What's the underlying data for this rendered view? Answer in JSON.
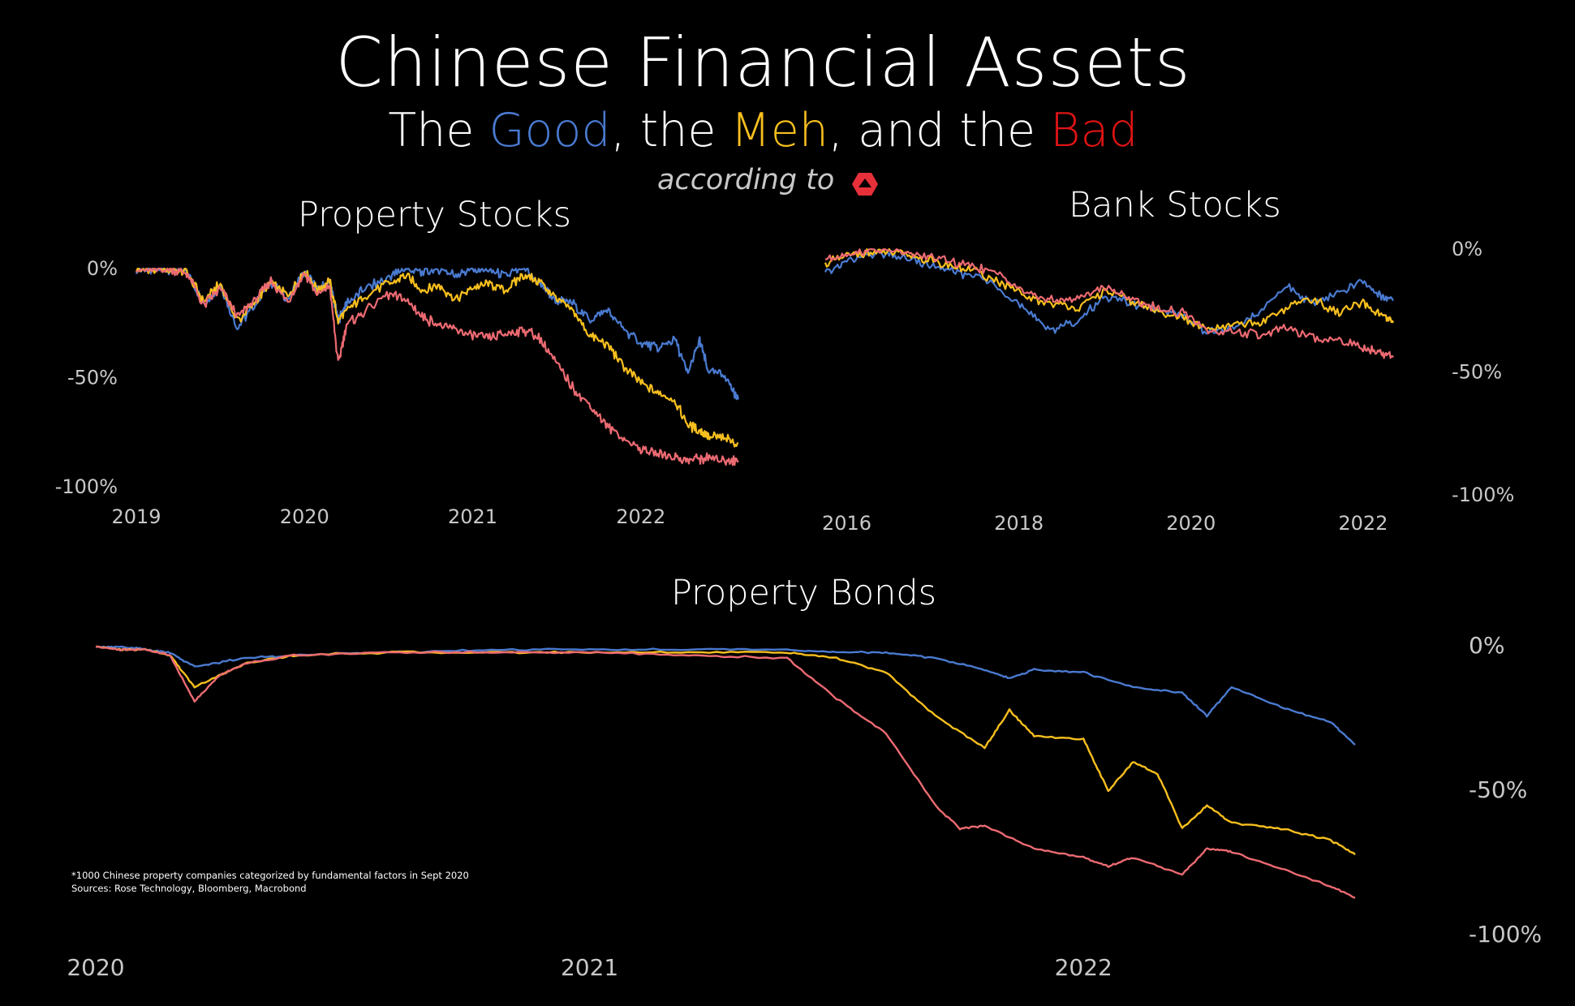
{
  "header": {
    "title": "Chinese Financial Assets",
    "subtitle_parts": [
      {
        "text": "The ",
        "color": "#ffffff"
      },
      {
        "text": "Good",
        "color": "#4a7ad0"
      },
      {
        "text": ", the ",
        "color": "#ffffff"
      },
      {
        "text": "Meh",
        "color": "#f7bf1e"
      },
      {
        "text": ", and the ",
        "color": "#ffffff"
      },
      {
        "text": "Bad",
        "color": "#e01414"
      }
    ],
    "according_to": "according to",
    "logo_icon": "red-hexagon-logo-icon"
  },
  "footnote": {
    "line1": "*1000 Chinese property companies categorized by fundamental factors in Sept 2020",
    "line2": "Sources: Rose Technology, Bloomberg, Macrobond"
  },
  "colors": {
    "good": "#4a7ad0",
    "meh": "#f7bf1e",
    "bad": "#ec6a72",
    "axis_text": "#c8c8c8",
    "background": "#000000"
  },
  "chart_data": [
    {
      "id": "property-stocks",
      "type": "line",
      "title": "Property Stocks",
      "xlabel": "",
      "ylabel": "",
      "x_ticks": [
        "2019",
        "2020",
        "2021",
        "2022"
      ],
      "x_tick_values": [
        2019,
        2020,
        2021,
        2022
      ],
      "xlim": [
        2019,
        2022.58
      ],
      "y_ticks": [
        "0%",
        "-50%",
        "-100%"
      ],
      "y_tick_values": [
        0,
        -50,
        -100
      ],
      "ylim": [
        -100,
        0
      ],
      "y_axis_side": "left",
      "grid": false,
      "series": [
        {
          "key": "good",
          "x": [
            2019.0,
            2019.1,
            2019.2,
            2019.3,
            2019.4,
            2019.5,
            2019.6,
            2019.7,
            2019.8,
            2019.9,
            2020.0,
            2020.08,
            2020.15,
            2020.2,
            2020.25,
            2020.35,
            2020.5,
            2020.6,
            2020.7,
            2020.8,
            2020.9,
            2021.0,
            2021.1,
            2021.2,
            2021.3,
            2021.4,
            2021.5,
            2021.6,
            2021.7,
            2021.8,
            2021.9,
            2022.0,
            2022.1,
            2022.2,
            2022.28,
            2022.35,
            2022.4,
            2022.5,
            2022.58
          ],
          "y": [
            0,
            -1,
            0,
            -2,
            -16,
            -8,
            -27,
            -17,
            -6,
            -14,
            -1,
            -10,
            -6,
            -24,
            -16,
            -10,
            -4,
            0,
            -2,
            0,
            -3,
            0,
            -1,
            -3,
            0,
            -7,
            -15,
            -16,
            -24,
            -19,
            -28,
            -34,
            -37,
            -32,
            -48,
            -33,
            -47,
            -49,
            -60
          ]
        },
        {
          "key": "meh",
          "x": [
            2019.0,
            2019.1,
            2019.2,
            2019.3,
            2019.4,
            2019.5,
            2019.6,
            2019.7,
            2019.8,
            2019.9,
            2020.0,
            2020.08,
            2020.15,
            2020.2,
            2020.25,
            2020.35,
            2020.5,
            2020.6,
            2020.7,
            2020.8,
            2020.9,
            2021.0,
            2021.1,
            2021.2,
            2021.3,
            2021.4,
            2021.5,
            2021.6,
            2021.7,
            2021.8,
            2021.9,
            2022.0,
            2022.1,
            2022.2,
            2022.28,
            2022.35,
            2022.4,
            2022.5,
            2022.58
          ],
          "y": [
            0,
            -1,
            0,
            -2,
            -15,
            -7,
            -24,
            -16,
            -6,
            -13,
            -1,
            -10,
            -6,
            -24,
            -19,
            -13,
            -7,
            -3,
            -10,
            -8,
            -14,
            -9,
            -7,
            -10,
            -3,
            -6,
            -14,
            -20,
            -31,
            -35,
            -45,
            -52,
            -57,
            -60,
            -72,
            -74,
            -77,
            -78,
            -80
          ]
        },
        {
          "key": "bad",
          "x": [
            2019.0,
            2019.1,
            2019.2,
            2019.3,
            2019.4,
            2019.5,
            2019.6,
            2019.7,
            2019.8,
            2019.9,
            2020.0,
            2020.08,
            2020.15,
            2020.2,
            2020.25,
            2020.35,
            2020.5,
            2020.6,
            2020.7,
            2020.8,
            2020.9,
            2021.0,
            2021.1,
            2021.2,
            2021.3,
            2021.4,
            2021.5,
            2021.6,
            2021.7,
            2021.8,
            2021.9,
            2022.0,
            2022.1,
            2022.2,
            2022.28,
            2022.35,
            2022.4,
            2022.5,
            2022.58
          ],
          "y": [
            0,
            -1,
            0,
            -2,
            -17,
            -9,
            -22,
            -15,
            -6,
            -15,
            -2,
            -12,
            -8,
            -44,
            -26,
            -20,
            -12,
            -14,
            -22,
            -26,
            -28,
            -31,
            -32,
            -30,
            -28,
            -32,
            -44,
            -55,
            -63,
            -72,
            -78,
            -83,
            -85,
            -86,
            -88,
            -87,
            -87,
            -88,
            -88
          ]
        }
      ]
    },
    {
      "id": "bank-stocks",
      "type": "line",
      "title": "Bank Stocks",
      "xlabel": "",
      "ylabel": "",
      "x_ticks": [
        "2016",
        "2018",
        "2020",
        "2022"
      ],
      "x_tick_values": [
        2016,
        2018,
        2020,
        2022
      ],
      "xlim": [
        2015.75,
        2022.35
      ],
      "y_ticks": [
        "0%",
        "-50%",
        "-100%"
      ],
      "y_tick_values": [
        0,
        -50,
        -100
      ],
      "ylim": [
        -100,
        0
      ],
      "y_axis_side": "right",
      "grid": false,
      "series": [
        {
          "key": "good",
          "x": [
            2015.75,
            2016.0,
            2016.3,
            2016.6,
            2016.9,
            2017.2,
            2017.5,
            2017.8,
            2018.1,
            2018.4,
            2018.7,
            2019.0,
            2019.3,
            2019.6,
            2019.9,
            2020.2,
            2020.5,
            2020.8,
            2021.1,
            2021.4,
            2021.7,
            2022.0,
            2022.2,
            2022.35
          ],
          "y": [
            -10,
            -5,
            -2,
            -3,
            -6,
            -9,
            -11,
            -16,
            -26,
            -33,
            -29,
            -19,
            -22,
            -25,
            -27,
            -34,
            -32,
            -26,
            -15,
            -22,
            -18,
            -13,
            -19,
            -21
          ]
        },
        {
          "key": "meh",
          "x": [
            2015.75,
            2016.0,
            2016.3,
            2016.6,
            2016.9,
            2017.2,
            2017.5,
            2017.8,
            2018.1,
            2018.4,
            2018.7,
            2019.0,
            2019.3,
            2019.6,
            2019.9,
            2020.2,
            2020.5,
            2020.8,
            2021.1,
            2021.4,
            2021.7,
            2022.0,
            2022.2,
            2022.35
          ],
          "y": [
            -6,
            -3,
            -1,
            -2,
            -4,
            -7,
            -9,
            -14,
            -20,
            -22,
            -24,
            -17,
            -21,
            -25,
            -28,
            -33,
            -31,
            -30,
            -24,
            -20,
            -26,
            -22,
            -27,
            -30
          ]
        },
        {
          "key": "bad",
          "x": [
            2015.75,
            2016.0,
            2016.3,
            2016.6,
            2016.9,
            2017.2,
            2017.5,
            2017.8,
            2018.1,
            2018.4,
            2018.7,
            2019.0,
            2019.3,
            2019.6,
            2019.9,
            2020.2,
            2020.5,
            2020.8,
            2021.1,
            2021.4,
            2021.7,
            2022.0,
            2022.2,
            2022.35
          ],
          "y": [
            -4,
            -2,
            0,
            -1,
            -3,
            -5,
            -7,
            -11,
            -18,
            -21,
            -20,
            -15,
            -20,
            -24,
            -26,
            -33,
            -34,
            -35,
            -32,
            -36,
            -37,
            -40,
            -42,
            -44
          ]
        }
      ]
    },
    {
      "id": "property-bonds",
      "type": "line",
      "title": "Property Bonds",
      "xlabel": "",
      "ylabel": "",
      "x_ticks": [
        "2020",
        "2021",
        "2022"
      ],
      "x_tick_values": [
        2020,
        2021,
        2022
      ],
      "xlim": [
        2020,
        2022.55
      ],
      "y_ticks": [
        "0%",
        "-50%",
        "-100%"
      ],
      "y_tick_values": [
        0,
        -50,
        -100
      ],
      "ylim": [
        -100,
        0
      ],
      "y_axis_side": "right",
      "grid": false,
      "series": [
        {
          "key": "good",
          "x": [
            2020.0,
            2020.05,
            2020.1,
            2020.15,
            2020.2,
            2020.3,
            2020.4,
            2020.6,
            2020.8,
            2021.0,
            2021.2,
            2021.4,
            2021.5,
            2021.6,
            2021.7,
            2021.8,
            2021.85,
            2021.9,
            2022.0,
            2022.1,
            2022.2,
            2022.25,
            2022.3,
            2022.4,
            2022.5,
            2022.55
          ],
          "y": [
            0,
            0,
            -1,
            -2,
            -7,
            -4,
            -3,
            -2,
            -1,
            -1,
            -1,
            -1,
            -2,
            -2,
            -4,
            -8,
            -11,
            -8,
            -9,
            -14,
            -16,
            -24,
            -14,
            -21,
            -26,
            -34
          ]
        },
        {
          "key": "meh",
          "x": [
            2020.0,
            2020.05,
            2020.1,
            2020.15,
            2020.2,
            2020.3,
            2020.4,
            2020.6,
            2020.8,
            2021.0,
            2021.2,
            2021.4,
            2021.5,
            2021.6,
            2021.7,
            2021.8,
            2021.85,
            2021.9,
            2022.0,
            2022.05,
            2022.1,
            2022.15,
            2022.2,
            2022.25,
            2022.3,
            2022.4,
            2022.5,
            2022.55
          ],
          "y": [
            0,
            -1,
            -1,
            -3,
            -14,
            -6,
            -3,
            -2,
            -2,
            -2,
            -2,
            -2,
            -4,
            -9,
            -24,
            -35,
            -22,
            -31,
            -32,
            -50,
            -40,
            -44,
            -63,
            -55,
            -61,
            -63,
            -67,
            -72
          ]
        },
        {
          "key": "bad",
          "x": [
            2020.0,
            2020.05,
            2020.1,
            2020.15,
            2020.2,
            2020.25,
            2020.3,
            2020.4,
            2020.6,
            2020.8,
            2021.0,
            2021.2,
            2021.4,
            2021.5,
            2021.6,
            2021.7,
            2021.75,
            2021.8,
            2021.9,
            2022.0,
            2022.05,
            2022.1,
            2022.2,
            2022.25,
            2022.3,
            2022.4,
            2022.5,
            2022.55
          ],
          "y": [
            0,
            -1,
            -1,
            -3,
            -19,
            -10,
            -6,
            -3,
            -2,
            -2,
            -2,
            -3,
            -4,
            -18,
            -30,
            -55,
            -63,
            -62,
            -70,
            -73,
            -76,
            -73,
            -79,
            -70,
            -71,
            -77,
            -83,
            -87
          ]
        }
      ]
    }
  ]
}
